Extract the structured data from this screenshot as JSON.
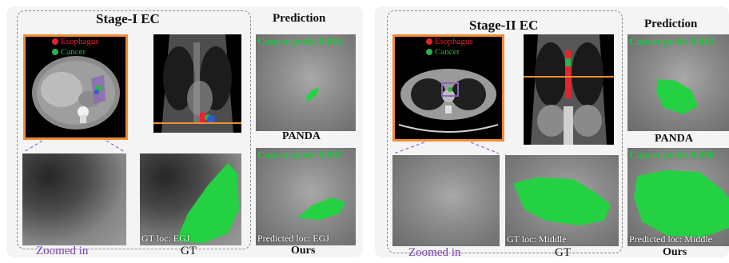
{
  "colors": {
    "esophagus": "#e8232b",
    "cancer": "#2db24a",
    "zoom_line": "#a36ad0",
    "orange_box": "#f28b33",
    "prob_text": "#1fc43d"
  },
  "stage1": {
    "title": "Stage-I EC",
    "legend": {
      "esophagus": "Esophagus",
      "cancer": "Cancer"
    },
    "prediction_title": "Prediction",
    "panda": {
      "method": "PANDA",
      "prob": "Cancer prob: 0.018"
    },
    "ours": {
      "method": "Ours",
      "prob": "Cancer prob: 0.987",
      "loc": "Predicted loc: EGJ"
    },
    "gt_loc": "GT loc: EGJ",
    "zoom_label": "Zoomed in",
    "gt_label": "GT"
  },
  "stage2": {
    "title": "Stage-II EC",
    "legend": {
      "esophagus": "Esophagus",
      "cancer": "Cancer"
    },
    "prediction_title": "Prediction",
    "panda": {
      "method": "PANDA",
      "prob": "Cancer prob: 0.814"
    },
    "ours": {
      "method": "Ours",
      "prob": "Cancer prob: 0.998",
      "loc": "Predicted loc: Middle"
    },
    "gt_loc": "GT loc: Middle",
    "zoom_label": "Zoomed in",
    "gt_label": "GT"
  }
}
